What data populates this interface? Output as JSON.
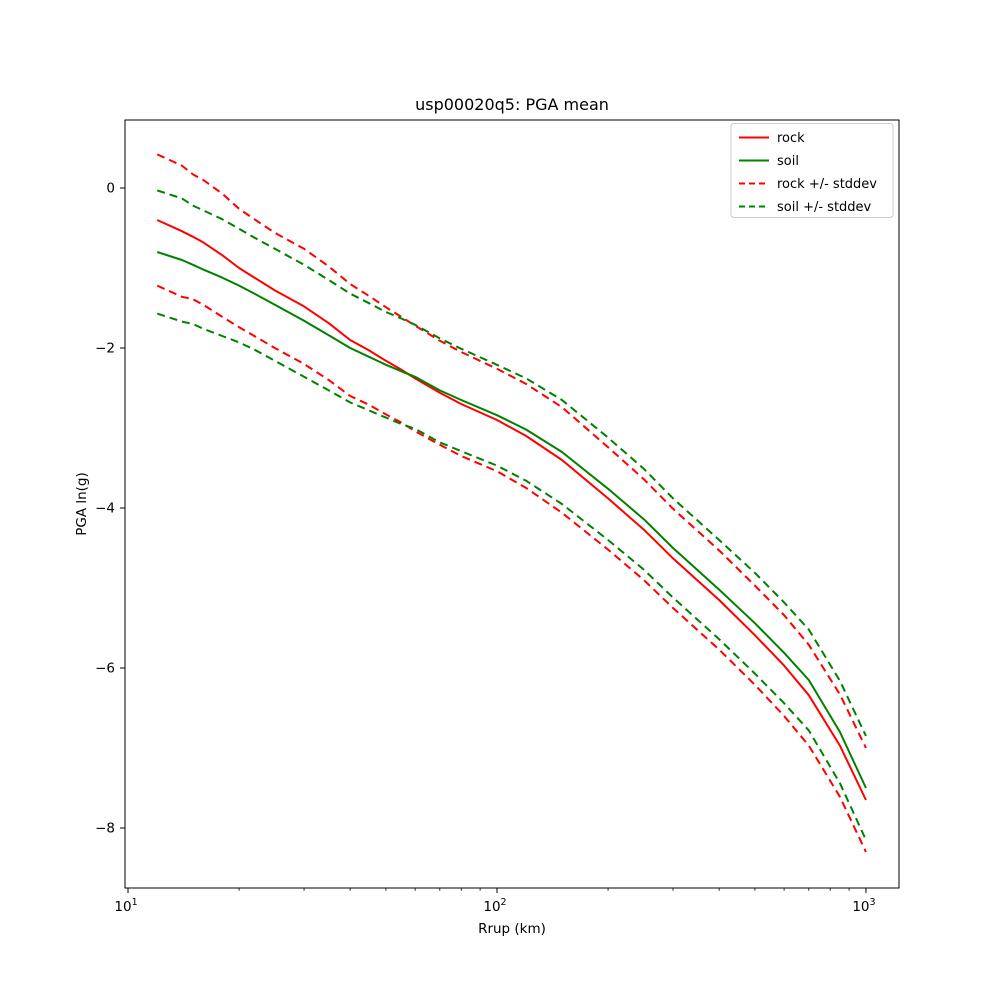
{
  "figure": {
    "background_color": "#ffffff"
  },
  "chart_data": {
    "type": "line",
    "title": "usp00020q5: PGA mean",
    "xlabel": "Rrup (km)",
    "ylabel": "PGA ln(g)",
    "x_scale": "log",
    "y_scale": "linear",
    "x_range": [
      9.814,
      1229
    ],
    "y_range": [
      -8.75,
      0.85
    ],
    "grid": false,
    "x_major_ticks": [
      {
        "v": 10,
        "base": "10",
        "exp": "1"
      },
      {
        "v": 100,
        "base": "10",
        "exp": "2"
      },
      {
        "v": 1000,
        "base": "10",
        "exp": "3"
      }
    ],
    "y_major_ticks": [
      {
        "v": 0,
        "label": "0"
      },
      {
        "v": -2,
        "label": "−2"
      },
      {
        "v": -4,
        "label": "−4"
      },
      {
        "v": -6,
        "label": "−6"
      },
      {
        "v": -8,
        "label": "−8"
      }
    ],
    "colors": {
      "rock": "#ff0000",
      "soil": "#008000",
      "legend_edge": "#cccccc",
      "spine": "#000000"
    },
    "x": [
      12,
      14,
      15,
      16,
      18,
      20,
      22,
      25,
      30,
      35,
      40,
      45,
      50,
      55,
      60,
      70,
      80,
      100,
      120,
      150,
      200,
      250,
      300,
      400,
      500,
      600,
      700,
      850,
      1000
    ],
    "series": [
      {
        "name": "rock",
        "color": "#ff0000",
        "style": "solid",
        "values": [
          -0.4,
          -0.54,
          -0.61,
          -0.68,
          -0.84,
          -1.0,
          -1.12,
          -1.28,
          -1.48,
          -1.69,
          -1.9,
          -2.03,
          -2.16,
          -2.27,
          -2.38,
          -2.56,
          -2.7,
          -2.9,
          -3.1,
          -3.4,
          -3.88,
          -4.27,
          -4.63,
          -5.15,
          -5.59,
          -5.97,
          -6.34,
          -6.97,
          -7.65
        ]
      },
      {
        "name": "soil",
        "color": "#008000",
        "style": "solid",
        "values": [
          -0.8,
          -0.9,
          -0.96,
          -1.02,
          -1.12,
          -1.22,
          -1.32,
          -1.46,
          -1.66,
          -1.84,
          -2.0,
          -2.11,
          -2.21,
          -2.29,
          -2.36,
          -2.53,
          -2.65,
          -2.84,
          -3.02,
          -3.3,
          -3.76,
          -4.14,
          -4.5,
          -5.02,
          -5.44,
          -5.81,
          -6.15,
          -6.8,
          -7.5
        ]
      },
      {
        "name": "rock + stddev",
        "color": "#ff0000",
        "style": "dashed",
        "values": [
          0.42,
          0.28,
          0.17,
          0.1,
          -0.07,
          -0.26,
          -0.39,
          -0.56,
          -0.76,
          -0.98,
          -1.2,
          -1.35,
          -1.49,
          -1.61,
          -1.72,
          -1.91,
          -2.05,
          -2.26,
          -2.45,
          -2.74,
          -3.24,
          -3.64,
          -4.01,
          -4.53,
          -4.97,
          -5.34,
          -5.71,
          -6.33,
          -7.0
        ]
      },
      {
        "name": "rock - stddev",
        "color": "#ff0000",
        "style": "dashed",
        "values": [
          -1.22,
          -1.36,
          -1.39,
          -1.46,
          -1.61,
          -1.74,
          -1.85,
          -2.0,
          -2.2,
          -2.4,
          -2.6,
          -2.71,
          -2.83,
          -2.93,
          -3.04,
          -3.21,
          -3.35,
          -3.54,
          -3.75,
          -4.06,
          -4.52,
          -4.9,
          -5.25,
          -5.77,
          -6.21,
          -6.6,
          -6.97,
          -7.61,
          -8.3
        ]
      },
      {
        "name": "soil + stddev",
        "color": "#008000",
        "style": "dashed",
        "values": [
          -0.03,
          -0.13,
          -0.22,
          -0.28,
          -0.39,
          -0.51,
          -0.62,
          -0.76,
          -0.96,
          -1.15,
          -1.32,
          -1.44,
          -1.55,
          -1.63,
          -1.71,
          -1.88,
          -2.01,
          -2.21,
          -2.38,
          -2.65,
          -3.12,
          -3.51,
          -3.88,
          -4.4,
          -4.81,
          -5.18,
          -5.52,
          -6.16,
          -6.85
        ]
      },
      {
        "name": "soil - stddev",
        "color": "#008000",
        "style": "dashed",
        "values": [
          -1.57,
          -1.67,
          -1.7,
          -1.76,
          -1.85,
          -1.93,
          -2.02,
          -2.16,
          -2.36,
          -2.53,
          -2.68,
          -2.78,
          -2.87,
          -2.95,
          -3.01,
          -3.18,
          -3.29,
          -3.47,
          -3.66,
          -3.95,
          -4.4,
          -4.77,
          -5.12,
          -5.64,
          -6.07,
          -6.44,
          -6.78,
          -7.44,
          -8.15
        ]
      }
    ],
    "legend": {
      "position": "upper right",
      "entries": [
        {
          "label": "rock",
          "color": "#ff0000",
          "style": "solid"
        },
        {
          "label": "soil",
          "color": "#008000",
          "style": "solid"
        },
        {
          "label": "rock +/- stddev",
          "color": "#ff0000",
          "style": "dashed"
        },
        {
          "label": "soil +/- stddev",
          "color": "#008000",
          "style": "dashed"
        }
      ]
    }
  }
}
